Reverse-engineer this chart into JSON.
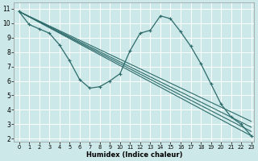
{
  "xlabel": "Humidex (Indice chaleur)",
  "bg_color": "#cce8e8",
  "grid_color": "#ffffff",
  "line_color": "#2e6b6b",
  "xlim": [
    -0.5,
    23.3
  ],
  "ylim": [
    1.8,
    11.4
  ],
  "xticks": [
    0,
    1,
    2,
    3,
    4,
    5,
    6,
    7,
    8,
    9,
    10,
    11,
    12,
    13,
    14,
    15,
    16,
    17,
    18,
    19,
    20,
    21,
    22,
    23
  ],
  "yticks": [
    2,
    3,
    4,
    5,
    6,
    7,
    8,
    9,
    10,
    11
  ],
  "main_line": {
    "x": [
      0,
      1,
      2,
      3,
      4,
      5,
      6,
      7,
      8,
      9,
      10,
      11,
      12,
      13,
      14,
      15,
      16,
      17,
      18,
      19,
      20,
      21,
      22,
      23
    ],
    "y": [
      10.8,
      9.9,
      9.6,
      9.3,
      8.5,
      7.4,
      6.1,
      5.5,
      5.6,
      6.0,
      6.5,
      8.1,
      9.3,
      9.5,
      10.5,
      10.3,
      9.4,
      8.4,
      7.2,
      5.8,
      4.4,
      3.5,
      3.0,
      2.2
    ]
  },
  "fan_lines": [
    {
      "x": [
        0,
        23
      ],
      "y": [
        10.8,
        2.2
      ]
    },
    {
      "x": [
        0,
        23
      ],
      "y": [
        10.8,
        2.5
      ]
    },
    {
      "x": [
        0,
        23
      ],
      "y": [
        10.8,
        2.8
      ]
    },
    {
      "x": [
        0,
        23
      ],
      "y": [
        10.8,
        3.2
      ]
    }
  ]
}
